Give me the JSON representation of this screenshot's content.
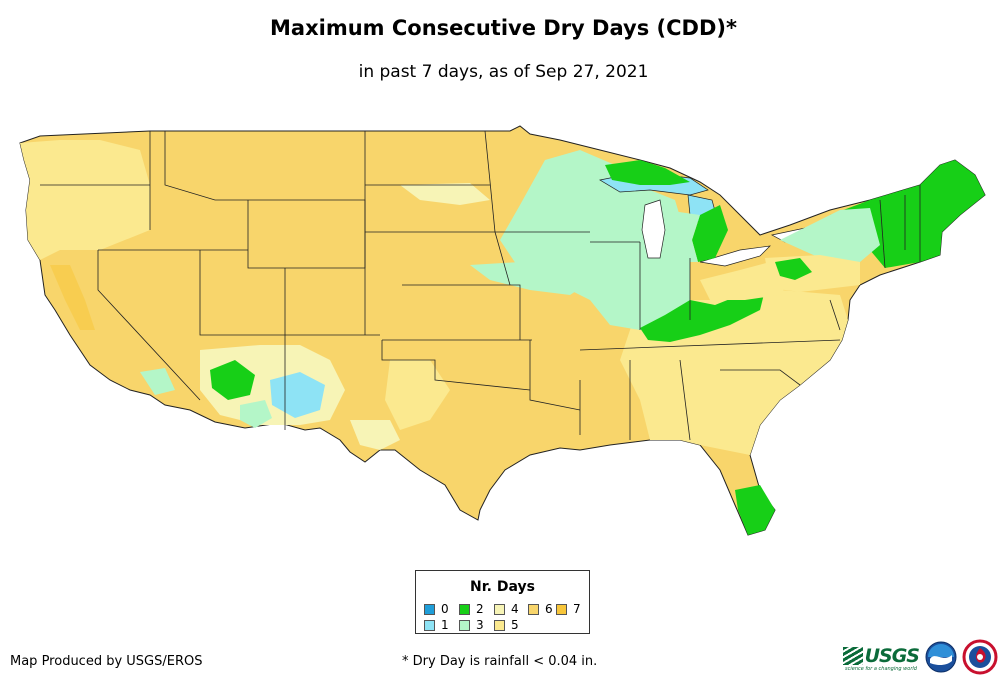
{
  "header": {
    "title": "Maximum Consecutive Dry Days (CDD)*",
    "subtitle": "in past 7 days, as of Sep 27, 2021"
  },
  "legend": {
    "title": "Nr. Days",
    "items": [
      {
        "label": "0",
        "color": "#1f9ed9"
      },
      {
        "label": "1",
        "color": "#8ee3f5"
      },
      {
        "label": "2",
        "color": "#17cf17"
      },
      {
        "label": "3",
        "color": "#b4f6c8"
      },
      {
        "label": "4",
        "color": "#f7f4b6"
      },
      {
        "label": "5",
        "color": "#fbe98f"
      },
      {
        "label": "6",
        "color": "#f8d56b"
      },
      {
        "label": "7",
        "color": "#f8c63a"
      }
    ]
  },
  "footer": {
    "credit": "Map Produced by USGS/EROS",
    "note": "* Dry Day is rainfall < 0.04 in.",
    "usgs_logo_text": "USGS",
    "usgs_tagline": "science for a changing world"
  },
  "logos": [
    "usgs-logo",
    "noaa-logo",
    "nws-logo"
  ]
}
